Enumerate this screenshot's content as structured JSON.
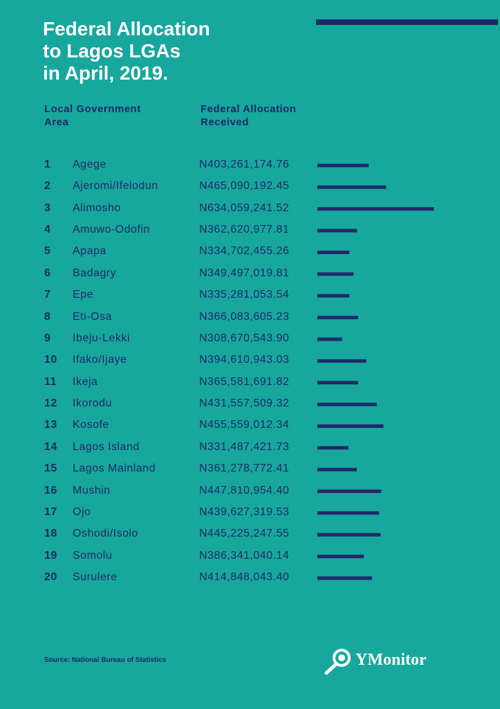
{
  "chart_data": {
    "type": "bar",
    "title": "Federal Allocation\nto Lagos LGAs\nin April, 2019.",
    "column_headers": [
      "Local Government\nArea",
      "Federal Allocation\nReceived"
    ],
    "ranks": [
      1,
      2,
      3,
      4,
      5,
      6,
      7,
      8,
      9,
      10,
      11,
      12,
      13,
      14,
      15,
      16,
      17,
      18,
      19,
      20
    ],
    "categories": [
      "Agege",
      "Ajeromi/Ifelodun",
      "Alimosho",
      "Amuwo-Odofin",
      "Apapa",
      "Badagry",
      "Epe",
      "Eti-Osa",
      "Ibeju-Lekki",
      "Ifako/Ijaye",
      "Ikeja",
      "Ikorodu",
      "Kosofe",
      "Lagos Island",
      "Lagos Mainland",
      "Mushin",
      "Ojo",
      "Oshodi/Isolo",
      "Somolu",
      "Surulere"
    ],
    "values": [
      403261174.76,
      465090192.45,
      634059241.52,
      362620977.81,
      334702455.26,
      349497019.81,
      335281053.54,
      366083605.23,
      308670543.9,
      394610943.03,
      365581691.82,
      431557509.32,
      455559012.34,
      331487421.73,
      361278772.41,
      447810954.4,
      439627319.53,
      445225247.55,
      386341040.14,
      414848043.4
    ],
    "value_labels": [
      "N403,261,174.76",
      "N465,090,192.45",
      "N634,059,241.52",
      "N362,620,977.81",
      "N334,702,455.26",
      "N349,497,019.81",
      "N335,281,053.54",
      "N366,083,605.23",
      "N308,670,543.90",
      "N394,610,943.03",
      "N365,581,691.82",
      "N431,557,509.32",
      "N455,559,012.34",
      "N331,487,421.73",
      "N361,278,772.41",
      "N447,810,954.40",
      "N439,627,319.53",
      "N445,225,247.55",
      "N386,341,040.14",
      "N414,848,043.40"
    ],
    "color": "#1f2868",
    "xlim": [
      222000000,
      650000000
    ],
    "source": "Source: National Bureau of Statistics",
    "logo": "YMonitor"
  }
}
